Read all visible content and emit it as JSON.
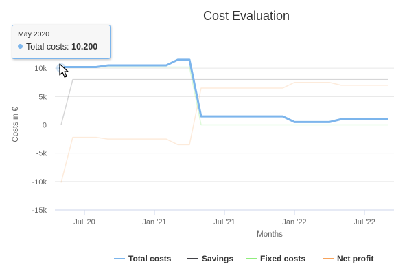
{
  "chart_data": {
    "type": "line",
    "title": "Cost Evaluation",
    "xlabel": "Months",
    "ylabel": "Costs in €",
    "x": [
      "2020-05",
      "2020-06",
      "2020-07",
      "2020-08",
      "2020-09",
      "2020-10",
      "2020-11",
      "2020-12",
      "2021-01",
      "2021-02",
      "2021-03",
      "2021-04",
      "2021-05",
      "2021-06",
      "2021-07",
      "2021-08",
      "2021-09",
      "2021-10",
      "2021-11",
      "2021-12",
      "2022-01",
      "2022-02",
      "2022-03",
      "2022-04",
      "2022-05",
      "2022-06",
      "2022-07",
      "2022-08",
      "2022-09"
    ],
    "x_ticks": [
      "Jul '20",
      "Jan '21",
      "Jul '21",
      "Jan '22",
      "Jul '22"
    ],
    "y_ticks": [
      "10k",
      "5k",
      "0",
      "-5k",
      "-10k",
      "-15k"
    ],
    "ylim": [
      -15000,
      15000
    ],
    "series": [
      {
        "name": "Total costs",
        "color": "#7cb5ec",
        "values": [
          10200,
          10200,
          10200,
          10200,
          10500,
          10500,
          10500,
          10500,
          10500,
          10500,
          11500,
          11500,
          1500,
          1500,
          1500,
          1500,
          1500,
          1500,
          1500,
          1500,
          500,
          500,
          500,
          500,
          1000,
          1000,
          1000,
          1000,
          1000
        ]
      },
      {
        "name": "Savings",
        "color": "#434348",
        "values": [
          0,
          8000,
          8000,
          8000,
          8000,
          8000,
          8000,
          8000,
          8000,
          8000,
          8000,
          8000,
          8000,
          8000,
          8000,
          8000,
          8000,
          8000,
          8000,
          8000,
          8000,
          8000,
          8000,
          8000,
          8000,
          8000,
          8000,
          8000,
          8000
        ]
      },
      {
        "name": "Fixed costs",
        "color": "#90ed7d",
        "values": [
          10200,
          10200,
          10200,
          10200,
          10200,
          10200,
          10200,
          10200,
          10200,
          10200,
          10200,
          10200,
          0,
          0,
          0,
          0,
          0,
          0,
          0,
          0,
          0,
          0,
          0,
          0,
          0,
          0,
          0,
          0,
          0
        ]
      },
      {
        "name": "Net profit",
        "color": "#f7a35c",
        "values": [
          -10200,
          -2200,
          -2200,
          -2200,
          -2500,
          -2500,
          -2500,
          -2500,
          -2500,
          -2500,
          -3500,
          -3500,
          6500,
          6500,
          6500,
          6500,
          6500,
          6500,
          6500,
          6500,
          7500,
          7500,
          7500,
          7500,
          7000,
          7000,
          7000,
          7000,
          7000
        ]
      }
    ],
    "legend": "bottom-center",
    "grid": true,
    "tooltip": {
      "header": "May 2020",
      "series": "Total costs",
      "value": "10.200"
    }
  },
  "tooltip": {
    "header": "May 2020",
    "label": "Total costs: ",
    "value": "10.200"
  }
}
